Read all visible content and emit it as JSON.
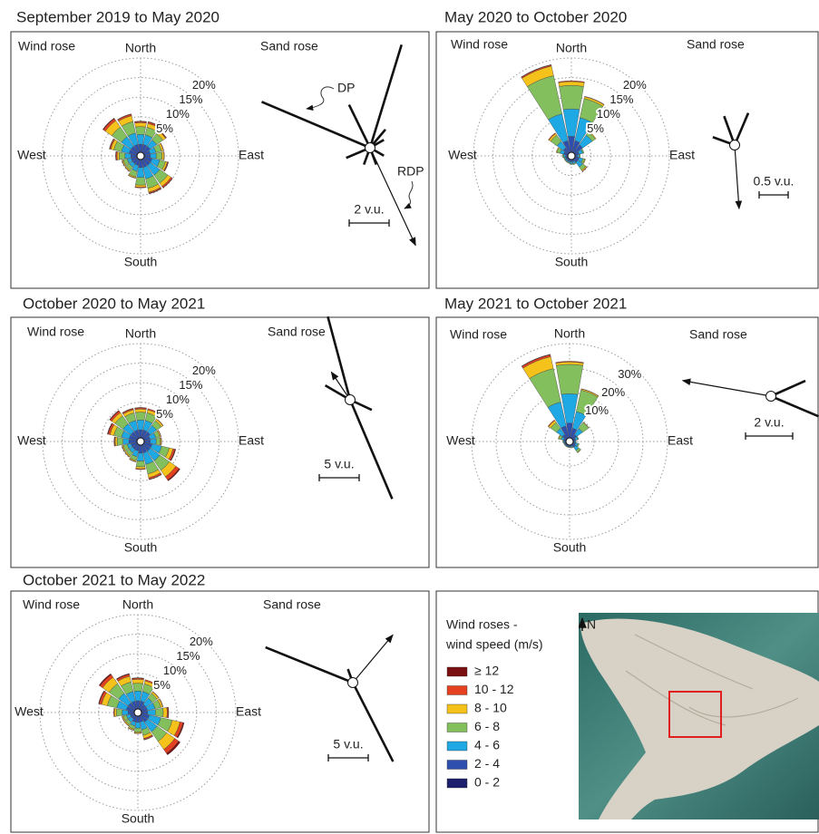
{
  "chart_data": [
    {
      "type": "windrose",
      "title": "September 2019 to May 2020",
      "wind_label": "Wind rose",
      "sand_label": "Sand rose",
      "compass": {
        "north": "North",
        "east": "East",
        "south": "South",
        "west": "West"
      },
      "theta": [
        0,
        22.5,
        45,
        67.5,
        90,
        112.5,
        135,
        157.5,
        180,
        202.5,
        225,
        247.5,
        270,
        292.5,
        315,
        337.5
      ],
      "rlim": [
        0,
        25
      ],
      "rticks": [
        {
          "value": 5,
          "label": "5%"
        },
        {
          "value": 10,
          "label": "10%"
        },
        {
          "value": 15,
          "label": "15%"
        },
        {
          "value": 20,
          "label": "20%"
        }
      ],
      "series": [
        {
          "values": [
            0.1,
            0.1,
            0.1,
            0,
            0,
            0.1,
            0.1,
            0.1,
            0,
            0,
            0,
            0,
            0.1,
            0.1,
            0.2,
            0.1
          ]
        },
        {
          "values": [
            0.3,
            0.4,
            0.2,
            0.1,
            0.1,
            0.2,
            0.4,
            0.3,
            0.2,
            0.1,
            0.1,
            0.1,
            0.3,
            0.3,
            0.6,
            0.4
          ]
        },
        {
          "values": [
            1,
            1,
            0.8,
            0.5,
            0.5,
            0.5,
            1,
            1,
            0.5,
            0.3,
            0.3,
            0.3,
            0.5,
            0.8,
            2,
            1.5
          ]
        },
        {
          "values": [
            2,
            2,
            2,
            1.5,
            1.5,
            1.5,
            2.5,
            2.5,
            2,
            1.5,
            1,
            1,
            1.5,
            2,
            3,
            3
          ]
        },
        {
          "values": [
            2.5,
            2.5,
            2,
            1.5,
            1.5,
            2,
            3,
            3,
            2.5,
            1.5,
            1,
            1,
            1.5,
            2,
            3,
            3
          ]
        },
        {
          "values": [
            2,
            2,
            2,
            1.5,
            1.5,
            2,
            2,
            2,
            2,
            1.5,
            1.5,
            1.5,
            1.5,
            2,
            2,
            2
          ]
        },
        {
          "values": [
            1,
            1,
            1,
            1,
            1,
            1,
            1,
            1,
            1,
            1,
            1,
            1,
            1,
            1,
            1,
            1
          ]
        }
      ],
      "sand_rose": {
        "theta": [
          293,
          17,
          334,
          247,
          200,
          160,
          120,
          60,
          40
        ],
        "values": [
          5.9,
          5.4,
          2.4,
          1.3,
          0.9,
          0.9,
          0.8,
          0.8,
          1.2
        ],
        "rdp": {
          "theta": 155,
          "value": 5.4
        },
        "scale": {
          "value": 2,
          "label": "2 v.u."
        }
      },
      "annotations": {
        "dp": "DP",
        "rdp": "RDP"
      }
    },
    {
      "type": "windrose",
      "title": "May 2020 to October 2020",
      "wind_label": "Wind rose",
      "sand_label": "Sand rose",
      "compass": {
        "north": "North",
        "east": "East",
        "south": "South",
        "west": "West"
      },
      "theta": [
        0,
        22.5,
        45,
        67.5,
        90,
        112.5,
        135,
        157.5,
        180,
        202.5,
        225,
        247.5,
        270,
        292.5,
        315,
        337.5
      ],
      "rlim": [
        0,
        25
      ],
      "rticks": [
        {
          "value": 5,
          "label": "5%"
        },
        {
          "value": 10,
          "label": "10%"
        },
        {
          "value": 15,
          "label": "15%"
        },
        {
          "value": 20,
          "label": "20%"
        }
      ],
      "series": [
        {
          "values": [
            0,
            0,
            0,
            0,
            0,
            0,
            0,
            0,
            0,
            0,
            0,
            0,
            0,
            0,
            0,
            0.1
          ]
        },
        {
          "values": [
            0.2,
            0.1,
            0,
            0,
            0,
            0,
            0.1,
            0,
            0,
            0,
            0,
            0,
            0,
            0,
            0.2,
            0.3
          ]
        },
        {
          "values": [
            1,
            0.5,
            0.2,
            0,
            0,
            0.2,
            0.3,
            0,
            0,
            0,
            0,
            0,
            0,
            0.2,
            0.5,
            2.5
          ]
        },
        {
          "values": [
            6,
            5,
            1,
            0.3,
            0.3,
            0.5,
            1,
            0.3,
            0.2,
            0.2,
            0.2,
            0.2,
            0.3,
            0.8,
            2,
            10
          ]
        },
        {
          "values": [
            7,
            6,
            3,
            1,
            0.5,
            1,
            1.5,
            0.5,
            0.5,
            0.3,
            0.3,
            0.3,
            0.5,
            1,
            2,
            7
          ]
        },
        {
          "values": [
            4,
            3,
            2.5,
            1,
            0.5,
            1,
            1,
            0.5,
            0.5,
            0.5,
            0.5,
            0.5,
            0.5,
            1,
            1.5,
            3
          ]
        },
        {
          "values": [
            1,
            1,
            1,
            1,
            1,
            1,
            1,
            1,
            1,
            1,
            1,
            1,
            1,
            1,
            1,
            1
          ]
        }
      ],
      "sand_rose": {
        "theta": [
          23,
          340,
          290
        ],
        "values": [
          0.6,
          0.53,
          0.4
        ],
        "rdp": {
          "theta": 176,
          "value": 1.1
        },
        "scale": {
          "value": 0.5,
          "label": "0.5 v.u."
        }
      }
    },
    {
      "type": "windrose",
      "title": "October 2020 to May 2021",
      "wind_label": "Wind rose",
      "sand_label": "Sand rose",
      "compass": {
        "north": "North",
        "east": "East",
        "south": "South",
        "west": "West"
      },
      "theta": [
        0,
        22.5,
        45,
        67.5,
        90,
        112.5,
        135,
        157.5,
        180,
        202.5,
        225,
        247.5,
        270,
        292.5,
        315,
        337.5
      ],
      "rlim": [
        0,
        25
      ],
      "rticks": [
        {
          "value": 5,
          "label": "5%"
        },
        {
          "value": 10,
          "label": "10%"
        },
        {
          "value": 15,
          "label": "15%"
        },
        {
          "value": 20,
          "label": "20%"
        }
      ],
      "series": [
        {
          "values": [
            0.1,
            0,
            0,
            0,
            0,
            0.2,
            0.3,
            0.1,
            0,
            0,
            0,
            0,
            0.1,
            0.2,
            0.2,
            0.1
          ]
        },
        {
          "values": [
            0.3,
            0.3,
            0.1,
            0.1,
            0.1,
            0.5,
            1,
            0.4,
            0.2,
            0.1,
            0.1,
            0.1,
            0.2,
            0.5,
            0.5,
            0.3
          ]
        },
        {
          "values": [
            0.8,
            0.8,
            0.5,
            0.3,
            0.3,
            1,
            2,
            1,
            0.5,
            0.3,
            0.3,
            0.3,
            0.5,
            1,
            1,
            0.8
          ]
        },
        {
          "values": [
            2,
            2,
            1.5,
            1,
            1,
            2,
            3,
            2.5,
            1.5,
            1,
            1,
            1,
            1.5,
            2,
            2.5,
            2
          ]
        },
        {
          "values": [
            2.5,
            2.5,
            2,
            1.5,
            1.5,
            2.5,
            3,
            3,
            2,
            1.5,
            1,
            1,
            1.5,
            2,
            2.5,
            2.5
          ]
        },
        {
          "values": [
            2,
            2,
            2,
            1.5,
            1.5,
            2,
            2,
            2,
            2,
            1.5,
            1.5,
            1.5,
            2,
            2,
            2,
            2
          ]
        },
        {
          "values": [
            1,
            1,
            1,
            1,
            1,
            1,
            1,
            1,
            1,
            1,
            1,
            1,
            1,
            1,
            1,
            1
          ]
        }
      ],
      "sand_rose": {
        "theta": [
          157,
          345,
          300,
          115
        ],
        "values": [
          13.5,
          10.8,
          3.6,
          3
        ],
        "rdp": {
          "theta": 326,
          "value": 4.2
        },
        "scale": {
          "value": 5,
          "label": "5 v.u."
        }
      }
    },
    {
      "type": "windrose",
      "title": "May 2021 to October 2021",
      "wind_label": "Wind rose",
      "sand_label": "Sand rose",
      "compass": {
        "north": "North",
        "east": "East",
        "south": "South",
        "west": "West"
      },
      "theta": [
        0,
        22.5,
        45,
        67.5,
        90,
        112.5,
        135,
        157.5,
        180,
        202.5,
        225,
        247.5,
        270,
        292.5,
        315,
        337.5
      ],
      "rlim": [
        0,
        40
      ],
      "rticks": [
        {
          "value": 10,
          "label": "10%"
        },
        {
          "value": 20,
          "label": "20%"
        },
        {
          "value": 30,
          "label": "30%"
        }
      ],
      "series": [
        {
          "values": [
            0,
            0,
            0,
            0,
            0,
            0,
            0,
            0,
            0,
            0,
            0,
            0,
            0,
            0,
            0,
            0.2
          ]
        },
        {
          "values": [
            0.3,
            0.1,
            0,
            0,
            0,
            0,
            0,
            0,
            0,
            0,
            0,
            0,
            0,
            0,
            0.3,
            0.8
          ]
        },
        {
          "values": [
            1,
            0.5,
            0.2,
            0,
            0,
            0,
            0.2,
            0,
            0,
            0,
            0,
            0,
            0,
            0.3,
            1,
            5
          ]
        },
        {
          "values": [
            12,
            9,
            3,
            0.3,
            0.2,
            0.5,
            1,
            0.3,
            0.2,
            0.2,
            0.2,
            0.2,
            0.3,
            1,
            3,
            14
          ]
        },
        {
          "values": [
            12,
            7,
            3,
            1,
            0.5,
            1,
            1.5,
            0.5,
            0.3,
            0.3,
            0.3,
            0.3,
            0.5,
            1,
            3,
            10
          ]
        },
        {
          "values": [
            6,
            4,
            2,
            1,
            0.5,
            1,
            1.5,
            0.5,
            0.5,
            0.5,
            0.5,
            0.5,
            0.5,
            1,
            2,
            5
          ]
        },
        {
          "values": [
            1.5,
            1.5,
            1.5,
            1.5,
            1.5,
            1.5,
            1.5,
            1.5,
            1.5,
            1.5,
            1.5,
            1.5,
            1.5,
            1.5,
            1.5,
            1.5
          ]
        }
      ],
      "sand_rose": {
        "theta": [
          66,
          113
        ],
        "values": [
          1.6,
          2.2
        ],
        "rdp": {
          "theta": 280,
          "value": 3.8
        },
        "scale": {
          "value": 2,
          "label": "2 v.u."
        }
      }
    },
    {
      "type": "windrose",
      "title": "October 2021 to May 2022",
      "wind_label": "Wind rose",
      "sand_label": "Sand rose",
      "compass": {
        "north": "North",
        "east": "East",
        "south": "South",
        "west": "West"
      },
      "theta": [
        0,
        22.5,
        45,
        67.5,
        90,
        112.5,
        135,
        157.5,
        180,
        202.5,
        225,
        247.5,
        270,
        292.5,
        315,
        337.5
      ],
      "rlim": [
        0,
        25
      ],
      "rticks": [
        {
          "value": 5,
          "label": "5%"
        },
        {
          "value": 10,
          "label": "10%"
        },
        {
          "value": 15,
          "label": "15%"
        },
        {
          "value": 20,
          "label": "20%"
        }
      ],
      "series": [
        {
          "values": [
            0.1,
            0,
            0,
            0,
            0.1,
            0.3,
            0.5,
            0.1,
            0,
            0,
            0,
            0,
            0,
            0.2,
            0.3,
            0.2
          ]
        },
        {
          "values": [
            0.3,
            0.3,
            0.1,
            0.1,
            0.3,
            0.8,
            1.2,
            0.3,
            0.1,
            0.1,
            0.1,
            0.1,
            0.2,
            0.6,
            0.8,
            0.5
          ]
        },
        {
          "values": [
            1,
            0.8,
            0.5,
            0.5,
            1,
            2,
            2.5,
            0.8,
            0.3,
            0.3,
            0.3,
            0.3,
            0.5,
            1.5,
            2,
            1.5
          ]
        },
        {
          "values": [
            2,
            2,
            1.5,
            1.5,
            2,
            3,
            3,
            1.5,
            1,
            0.8,
            0.8,
            0.8,
            1.5,
            2.5,
            3,
            2.5
          ]
        },
        {
          "values": [
            2.5,
            2.5,
            2,
            2,
            2,
            3,
            3,
            2,
            1.5,
            1,
            1,
            1,
            1.5,
            2.5,
            3,
            2.5
          ]
        },
        {
          "values": [
            2,
            2,
            1.5,
            1.5,
            1.5,
            2,
            2,
            1.5,
            1.5,
            1.5,
            1,
            1,
            1.5,
            2,
            2,
            2
          ]
        },
        {
          "values": [
            1,
            1,
            1,
            1,
            1,
            1,
            1,
            1,
            1,
            1,
            1,
            1,
            1,
            1,
            1,
            1
          ]
        }
      ],
      "sand_rose": {
        "theta": [
          292,
          153,
          340
        ],
        "values": [
          11.8,
          11.1,
          1.8
        ],
        "rdp": {
          "theta": 40,
          "value": 7.8
        },
        "scale": {
          "value": 5,
          "label": "5 v.u."
        }
      }
    }
  ],
  "legend": {
    "title": [
      "Wind roses -",
      "wind speed (m/s)"
    ],
    "items": [
      {
        "name": "≥ 12",
        "color": "#7a0f12"
      },
      {
        "name": "10 - 12",
        "color": "#e5401f"
      },
      {
        "name": "8 - 10",
        "color": "#f5c21b"
      },
      {
        "name": "6 - 8",
        "color": "#84bf5e"
      },
      {
        "name": "4 - 6",
        "color": "#1ea8e4"
      },
      {
        "name": "2 - 4",
        "color": "#2f4fae"
      },
      {
        "name": "0 - 2",
        "color": "#1c1f6b"
      }
    ]
  },
  "map": {
    "north_label": "N"
  }
}
